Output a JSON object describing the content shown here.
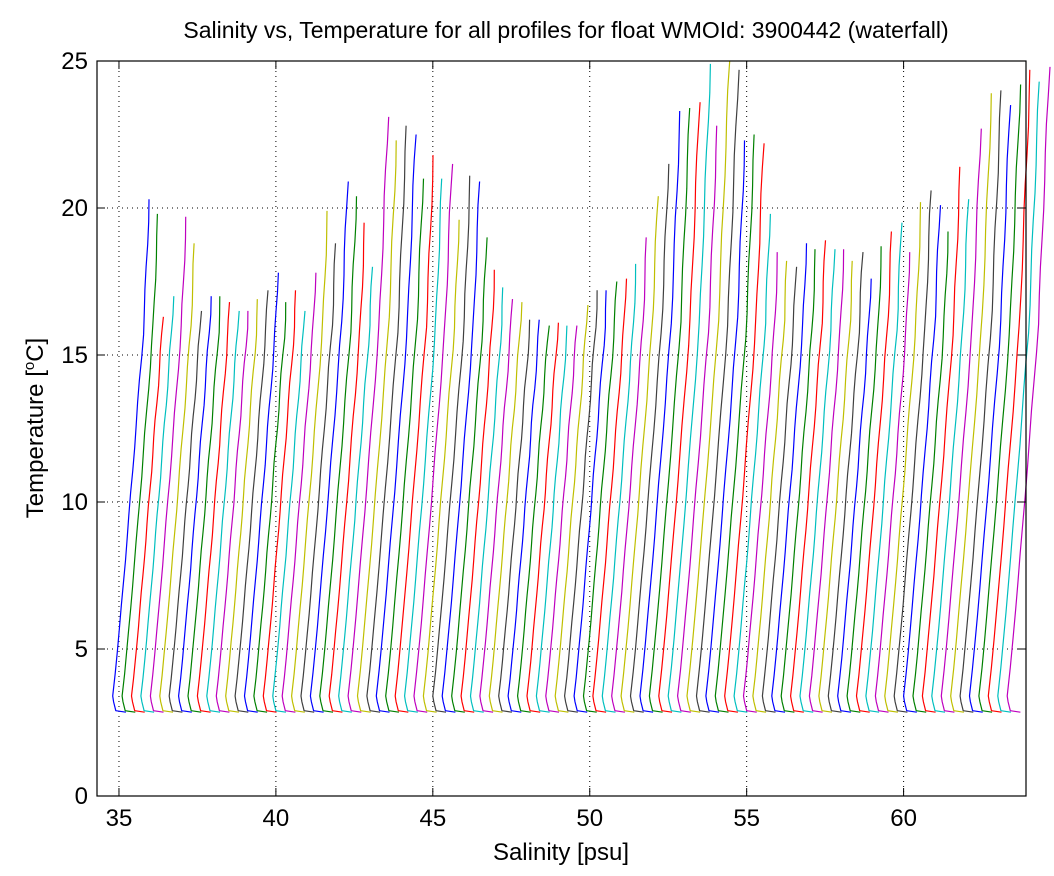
{
  "chart_data": {
    "type": "line",
    "title": "Salinity vs, Temperature for all profiles for float WMOId: 3900442 (waterfall)",
    "xlabel": "Salinity [psu]",
    "ylabel": "Temperature [",
    "ylabel_sup": "o",
    "ylabel_end": "C]",
    "xlim": [
      34.3,
      63.9
    ],
    "ylim": [
      0,
      25
    ],
    "xticks": [
      35,
      40,
      45,
      50,
      55,
      60
    ],
    "yticks": [
      0,
      5,
      10,
      15,
      20,
      25
    ],
    "xtick_labels": [
      "35",
      "40",
      "45",
      "50",
      "55",
      "60"
    ],
    "ytick_labels": [
      "0",
      "5",
      "10",
      "15",
      "20",
      "25"
    ],
    "grid": true,
    "legend": "none",
    "profile_count": 96,
    "base_salinity_start": 34.8,
    "waterfall_offset": 0.3,
    "colors": [
      "#0000ff",
      "#008000",
      "#ff0000",
      "#00bfbf",
      "#bf00bf",
      "#bfbf00",
      "#404040"
    ],
    "surface_temperatures": [
      20.3,
      19.8,
      16.3,
      17.0,
      19.7,
      18.8,
      16.5,
      17.0,
      17.0,
      16.8,
      16.5,
      16.5,
      16.9,
      17.2,
      17.8,
      16.8,
      17.2,
      16.5,
      17.8,
      19.9,
      18.8,
      20.9,
      20.4,
      19.5,
      18.0,
      23.1,
      22.3,
      22.8,
      22.5,
      21.0,
      21.8,
      21.0,
      21.5,
      19.6,
      21.1,
      20.9,
      19.0,
      17.9,
      17.3,
      16.9,
      16.8,
      16.2,
      16.2,
      16.0,
      16.1,
      16.0,
      16.0,
      16.7,
      17.2,
      17.2,
      17.5,
      17.6,
      18.1,
      19.0,
      20.4,
      21.5,
      23.3,
      23.4,
      23.6,
      24.9,
      22.8,
      25.0,
      24.7,
      22.3,
      22.5,
      22.2,
      19.8,
      18.5,
      18.2,
      18.0,
      18.8,
      18.6,
      18.9,
      18.6,
      18.6,
      18.2,
      18.5,
      17.6,
      18.7,
      19.2,
      19.5,
      18.5,
      20.2,
      20.6,
      20.1,
      19.2,
      21.4,
      20.3,
      22.7,
      23.9,
      24.0,
      23.5,
      24.2,
      24.7,
      24.3,
      24.8
    ]
  }
}
